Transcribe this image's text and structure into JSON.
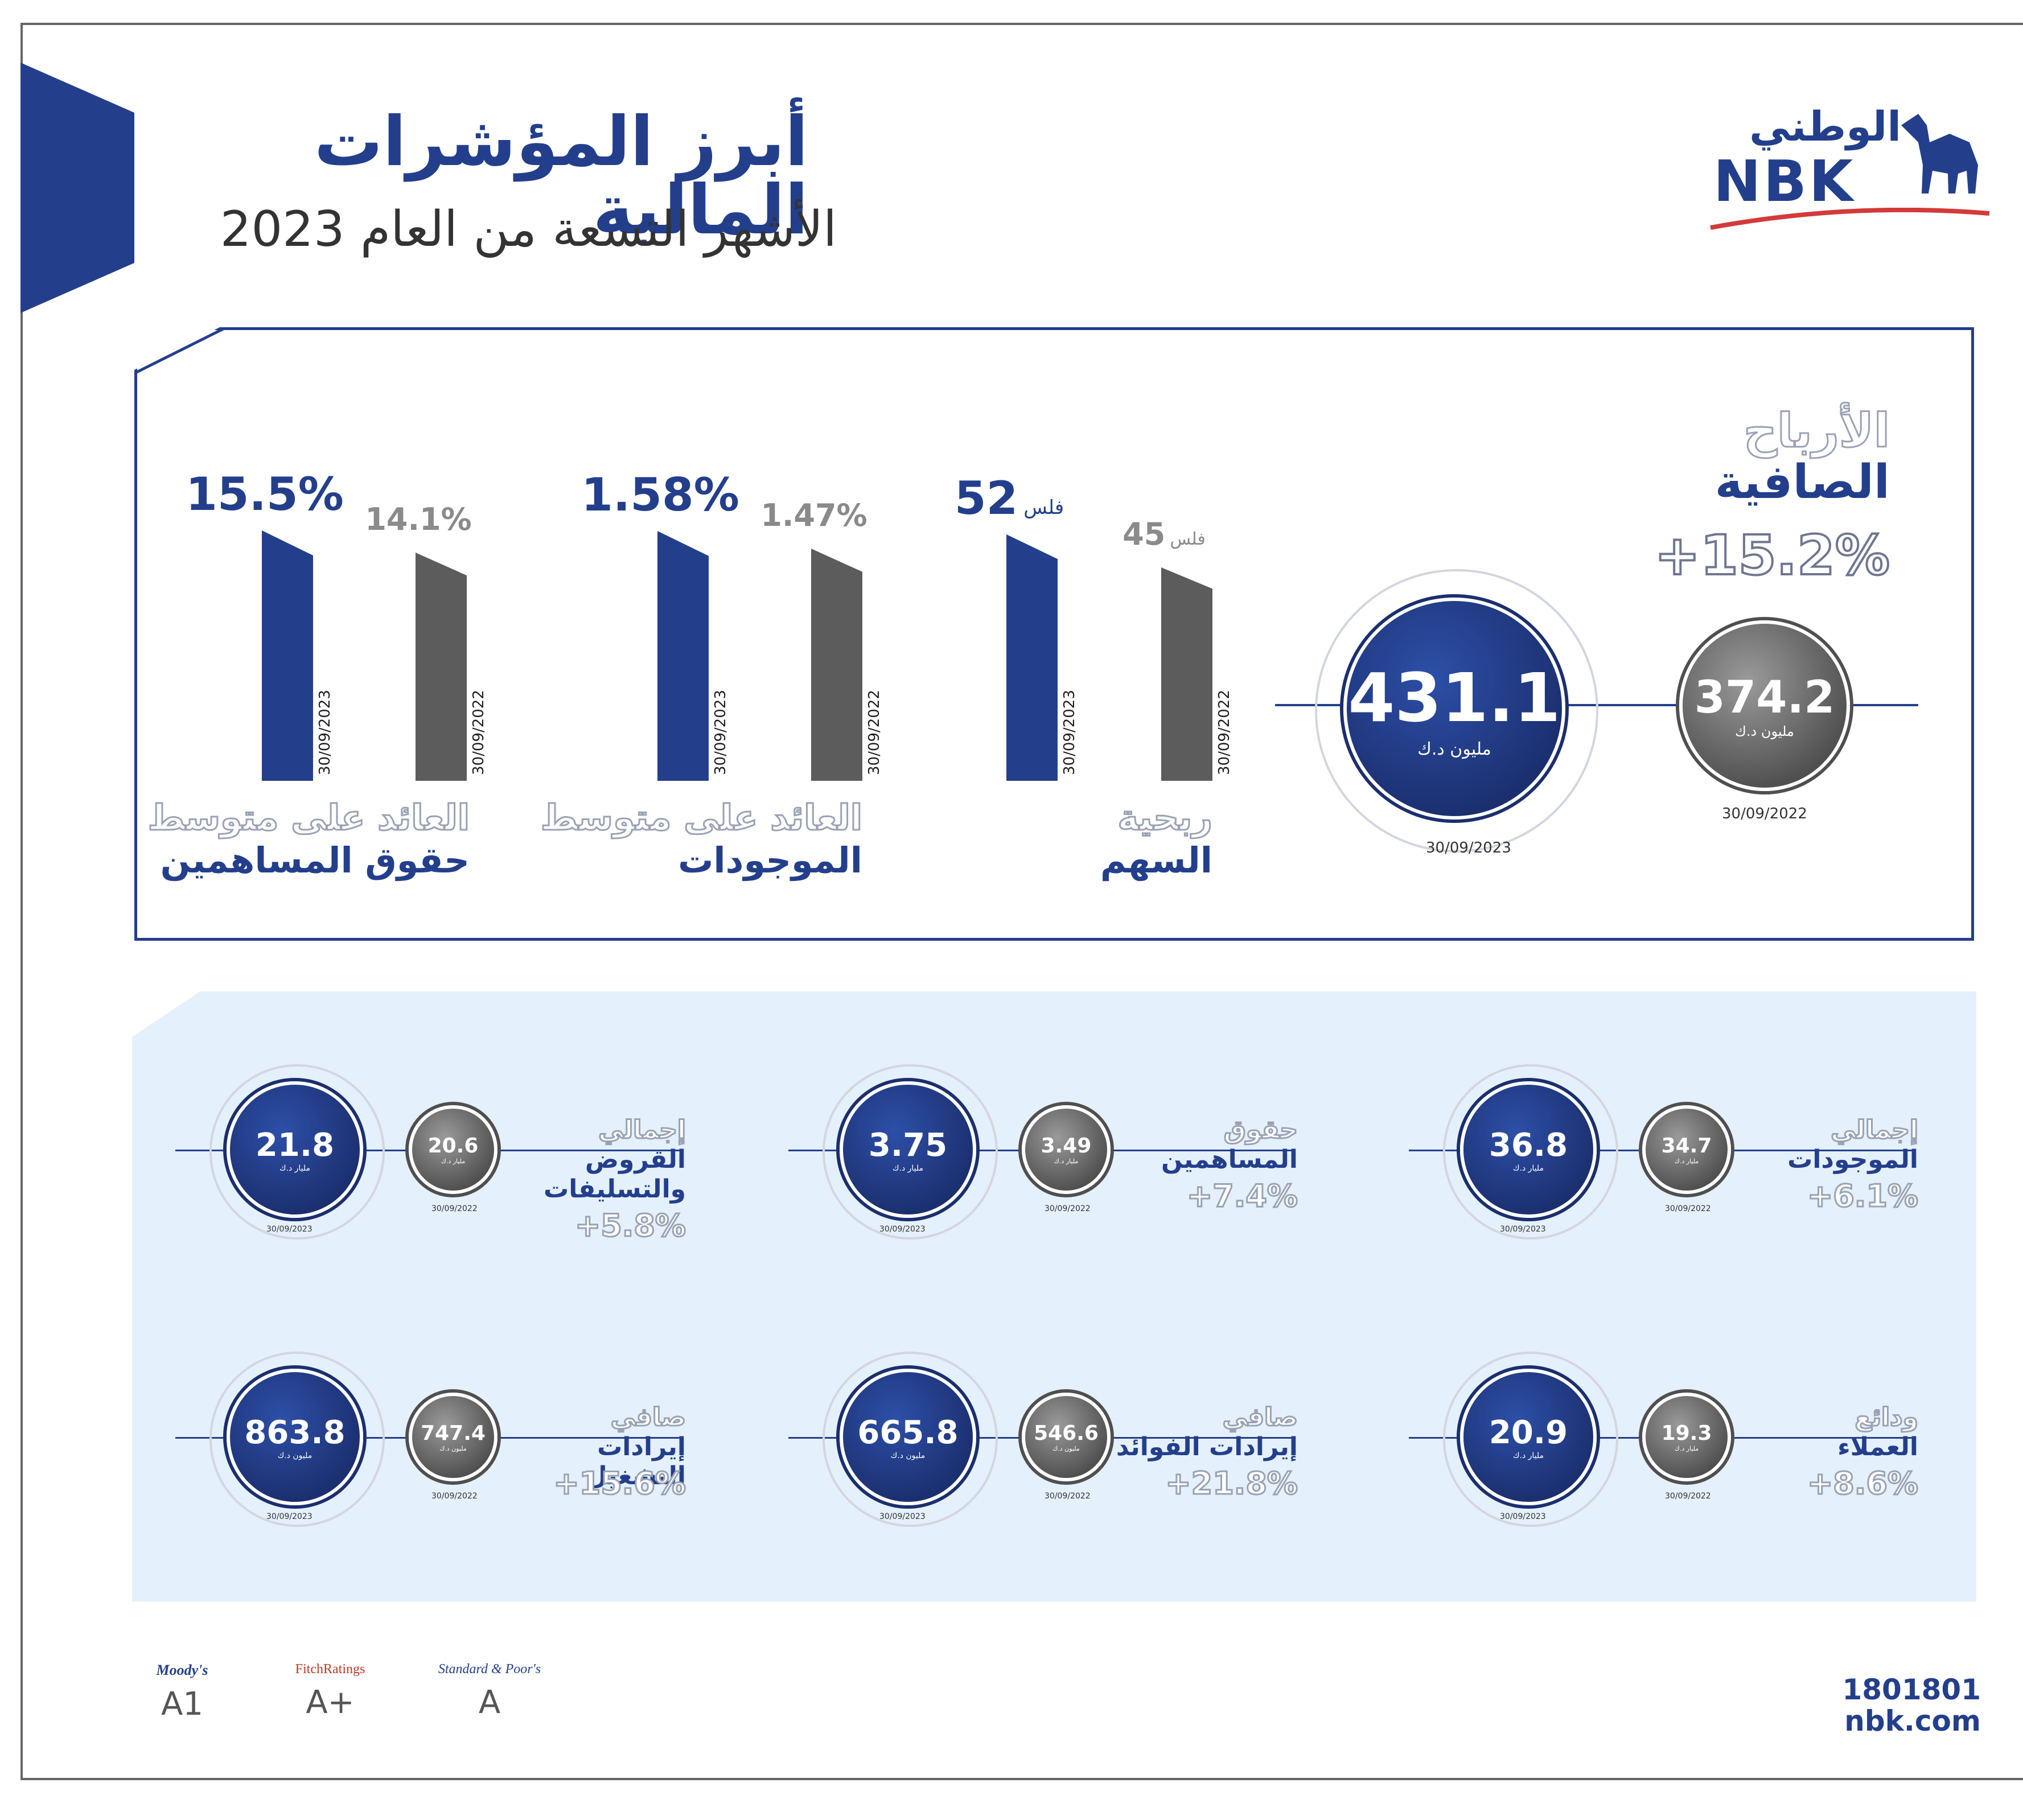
{
  "header": {
    "title": "أبرز المؤشرات المالية",
    "subtitle": "الأشهر التسعة من العام 2023",
    "logo_ar": "الوطني",
    "logo_en": "NBK"
  },
  "net_profit": {
    "label_line1": "الأرباح",
    "label_line2": "الصافية",
    "growth": "+15.2%",
    "current_value": "431.1",
    "current_unit": "مليون د.ك",
    "current_date": "30/09/2023",
    "prior_value": "374.2",
    "prior_unit": "مليون د.ك",
    "prior_date": "30/09/2022"
  },
  "bar_groups": [
    {
      "label_line1": "ربحية",
      "label_line2": "السهم",
      "current_label": "52",
      "current_suffix": "فلس",
      "prior_label": "45",
      "prior_suffix": "فلس",
      "current_date": "30/09/2023",
      "prior_date": "30/09/2022"
    },
    {
      "label_line1": "العائد على متوسط",
      "label_line2": "الموجودات",
      "current_label": "1.58%",
      "prior_label": "1.47%",
      "current_date": "30/09/2023",
      "prior_date": "30/09/2022"
    },
    {
      "label_line1": "العائد على متوسط",
      "label_line2": "حقوق المساهمين",
      "current_label": "15.5%",
      "prior_label": "14.1%",
      "current_date": "30/09/2023",
      "prior_date": "30/09/2022"
    }
  ],
  "chart_data": [
    {
      "type": "bar",
      "categories": [
        "30/09/2022",
        "30/09/2023"
      ],
      "series": [
        {
          "name": "ربحية السهم",
          "values": [
            45,
            52
          ]
        }
      ],
      "ylim": [
        0,
        60
      ]
    },
    {
      "type": "bar",
      "categories": [
        "30/09/2022",
        "30/09/2023"
      ],
      "series": [
        {
          "name": "العائد على متوسط الموجودات",
          "values": [
            1.47,
            1.58
          ]
        }
      ],
      "ylim": [
        0,
        1.8
      ]
    },
    {
      "type": "bar",
      "categories": [
        "30/09/2022",
        "30/09/2023"
      ],
      "series": [
        {
          "name": "العائد على متوسط حقوق المساهمين",
          "values": [
            14.1,
            15.5
          ]
        }
      ],
      "ylim": [
        0,
        17.6
      ]
    }
  ],
  "kpis": [
    {
      "line1": "إجمالي",
      "line2": "الموجودات",
      "line3": "",
      "growth": "+6.1%",
      "current": "36.8",
      "prior": "34.7",
      "unit": "مليار د.ك",
      "current_date": "30/09/2023",
      "prior_date": "30/09/2022"
    },
    {
      "line1": "حقوق",
      "line2": "المساهمين",
      "line3": "",
      "growth": "+7.4%",
      "current": "3.75",
      "prior": "3.49",
      "unit": "مليار د.ك",
      "current_date": "30/09/2023",
      "prior_date": "30/09/2022"
    },
    {
      "line1": "إجمالي",
      "line2": "القروض",
      "line3": "والتسليفات",
      "growth": "+5.8%",
      "current": "21.8",
      "prior": "20.6",
      "unit": "مليار د.ك",
      "current_date": "30/09/2023",
      "prior_date": "30/09/2022"
    },
    {
      "line1": "ودائع",
      "line2": "العملاء",
      "line3": "",
      "growth": "+8.6%",
      "current": "20.9",
      "prior": "19.3",
      "unit": "مليار د.ك",
      "current_date": "30/09/2023",
      "prior_date": "30/09/2022"
    },
    {
      "line1": "صافي",
      "line2": "إيرادات الفوائد",
      "line3": "",
      "growth": "+21.8%",
      "current": "665.8",
      "prior": "546.6",
      "unit": "مليون د.ك",
      "current_date": "30/09/2023",
      "prior_date": "30/09/2022"
    },
    {
      "line1": "صافي",
      "line2": "إيرادات التشغيل",
      "line3": "",
      "growth": "+15.6%",
      "current": "863.8",
      "prior": "747.4",
      "unit": "مليون د.ك",
      "current_date": "30/09/2023",
      "prior_date": "30/09/2022"
    }
  ],
  "footer": {
    "phone": "1801801",
    "website": "nbk.com",
    "ratings": [
      {
        "agency": "Moody's",
        "rating": "A1"
      },
      {
        "agency": "FitchRatings",
        "rating": "A+"
      },
      {
        "agency": "Standard & Poor's",
        "rating": "A"
      }
    ]
  },
  "colors": {
    "navy": "#233f8c",
    "grey": "#5c5c5c",
    "panel": "#e4f0fb"
  }
}
